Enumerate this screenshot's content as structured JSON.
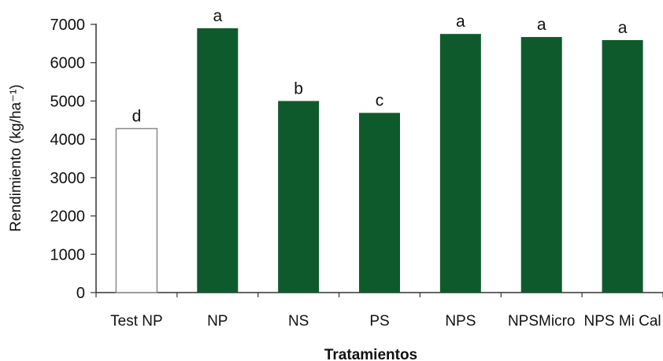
{
  "chart_data": {
    "type": "bar",
    "title": "",
    "xlabel": "Tratamientos",
    "ylabel": "Rendimiento (kg/ha⁻¹)",
    "ylim": [
      0,
      7000
    ],
    "yticks": [
      0,
      1000,
      2000,
      3000,
      4000,
      5000,
      6000,
      7000
    ],
    "grid": false,
    "categories": [
      "Test NP",
      "NP",
      "NS",
      "PS",
      "NPS",
      "NPSMicro",
      "NPS Mi Cal"
    ],
    "values": [
      4280,
      6900,
      5000,
      4690,
      6750,
      6670,
      6590
    ],
    "significance_letters": [
      "d",
      "a",
      "b",
      "c",
      "a",
      "a",
      "a"
    ],
    "bar_styles": [
      "outline",
      "filled",
      "filled",
      "filled",
      "filled",
      "filled",
      "filled"
    ],
    "colors": {
      "bar_fill": "#0f5a2c",
      "bar_outline": "#8a8a8a",
      "axis": "#333333",
      "text": "#111111"
    }
  }
}
